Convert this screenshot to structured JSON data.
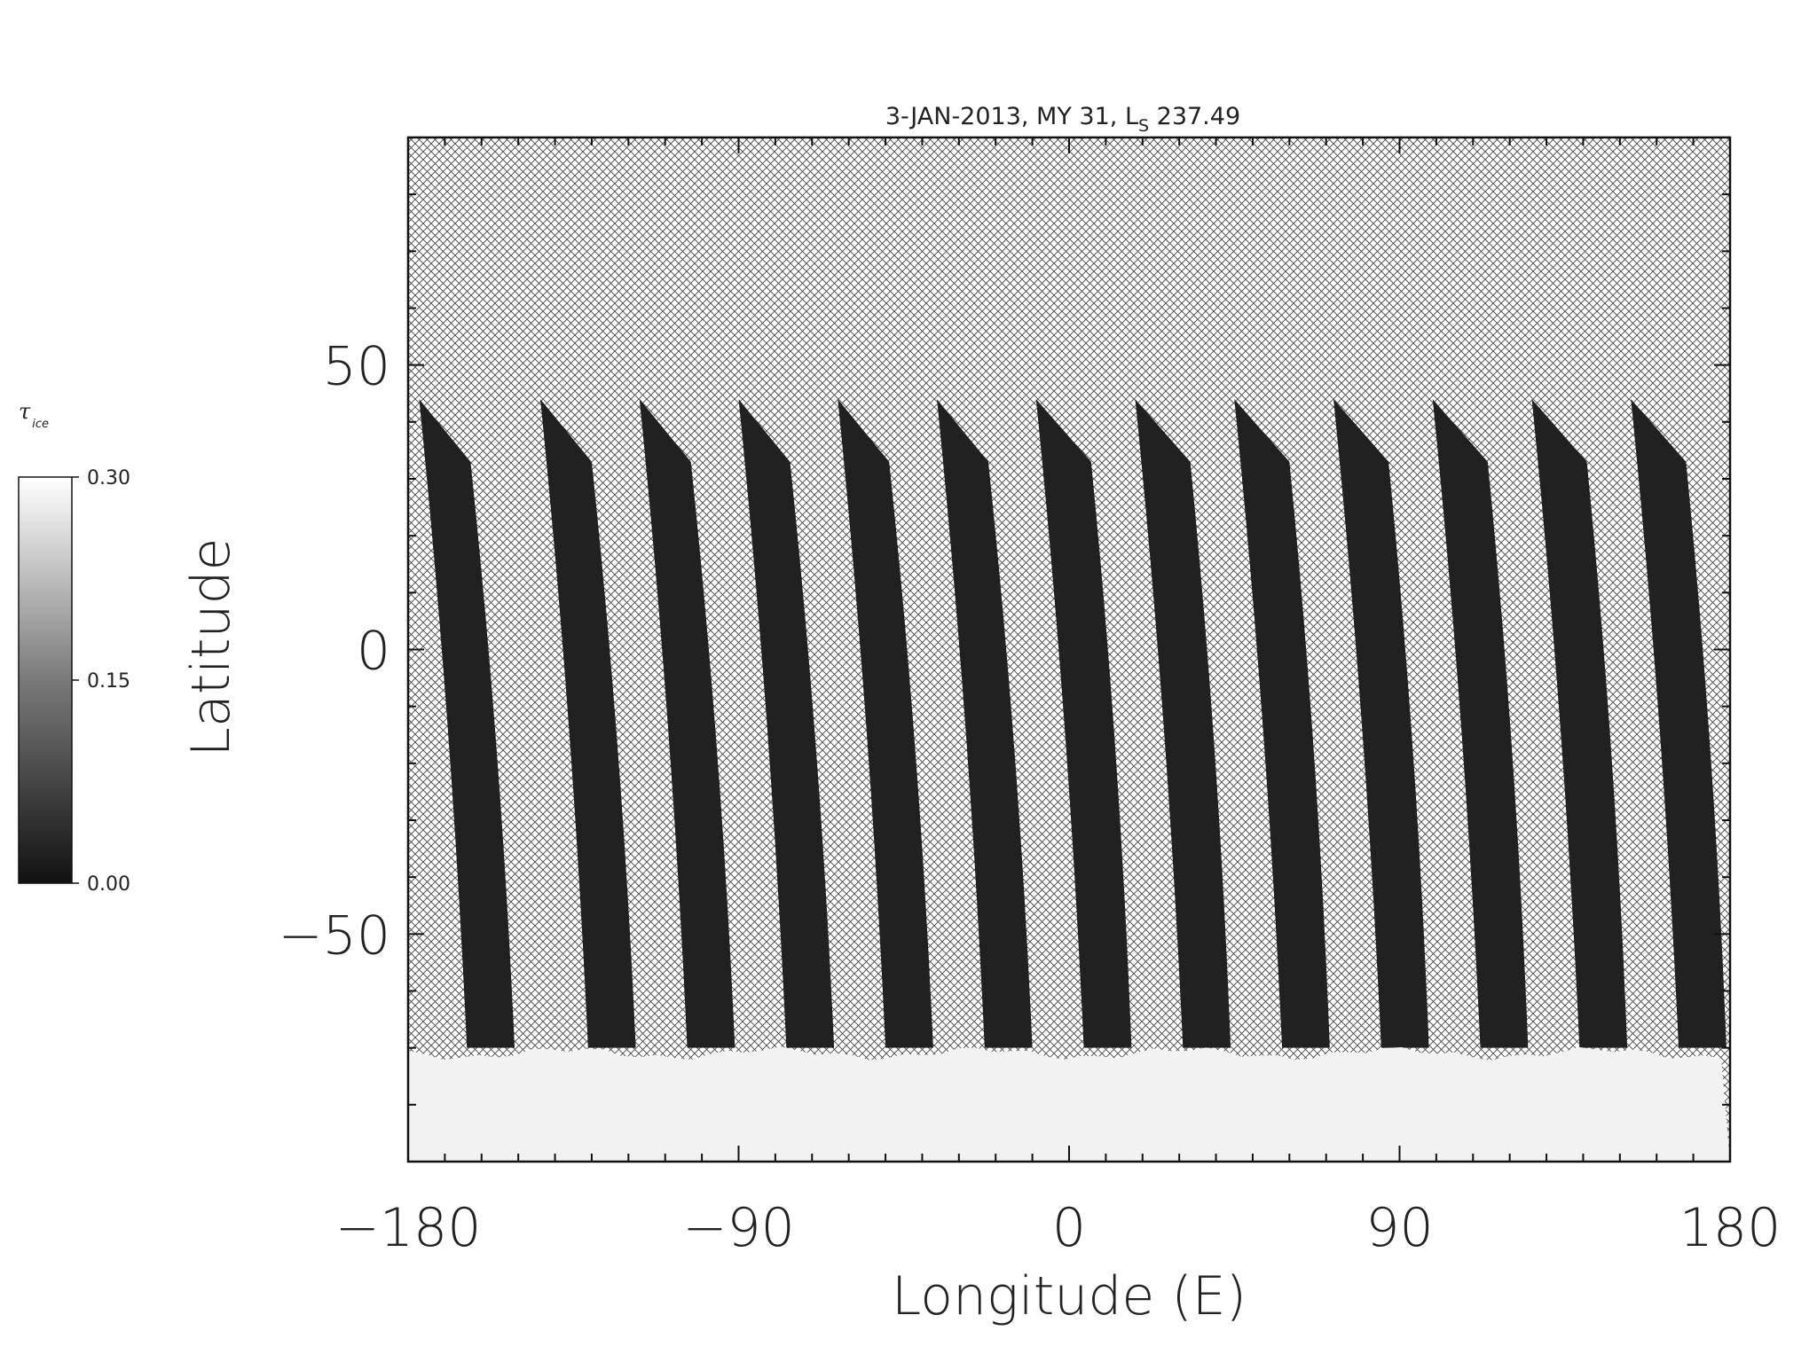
{
  "chart_data": {
    "type": "heatmap",
    "title": "3-JAN-2013, MY 31,  L",
    "title_subscript": "S",
    "title_suffix": " 237.49",
    "xlabel": "Longitude (E)",
    "ylabel": "Latitude",
    "xlim": [
      -180,
      180
    ],
    "ylim": [
      -90,
      90
    ],
    "xticks": [
      -180,
      -90,
      0,
      90,
      180
    ],
    "xtick_labels": [
      "−180",
      "−90",
      "0",
      "90",
      "180"
    ],
    "yticks": [
      50,
      0,
      -50
    ],
    "ytick_labels": [
      "50",
      "0",
      "−50"
    ],
    "missing_data_pattern": "crosshatch",
    "colorbar": {
      "symbol": "τ",
      "subscript": "ice",
      "min": 0.0,
      "max": 0.3,
      "ticks": [
        0.3,
        0.15,
        0.0
      ],
      "tick_labels": [
        "0.30",
        "0.15",
        "0.00"
      ],
      "colormap": "grayscale"
    },
    "swaths": [
      {
        "lon_top_left": -177,
        "lon_top_right": -163,
        "lon_bottom_left": -164,
        "lon_bottom_right": -151
      },
      {
        "lon_top_left": -144,
        "lon_top_right": -130,
        "lon_bottom_left": -131,
        "lon_bottom_right": -118
      },
      {
        "lon_top_left": -117,
        "lon_top_right": -103,
        "lon_bottom_left": -104,
        "lon_bottom_right": -91
      },
      {
        "lon_top_left": -90,
        "lon_top_right": -76,
        "lon_bottom_left": -77,
        "lon_bottom_right": -64
      },
      {
        "lon_top_left": -63,
        "lon_top_right": -49,
        "lon_bottom_left": -50,
        "lon_bottom_right": -37
      },
      {
        "lon_top_left": -36,
        "lon_top_right": -22,
        "lon_bottom_left": -23,
        "lon_bottom_right": -10
      },
      {
        "lon_top_left": -9,
        "lon_top_right": 6,
        "lon_bottom_left": 4,
        "lon_bottom_right": 17
      },
      {
        "lon_top_left": 18,
        "lon_top_right": 33,
        "lon_bottom_left": 31,
        "lon_bottom_right": 44
      },
      {
        "lon_top_left": 45,
        "lon_top_right": 60,
        "lon_bottom_left": 58,
        "lon_bottom_right": 71
      },
      {
        "lon_top_left": 72,
        "lon_top_right": 87,
        "lon_bottom_left": 85,
        "lon_bottom_right": 98
      },
      {
        "lon_top_left": 99,
        "lon_top_right": 114,
        "lon_bottom_left": 112,
        "lon_bottom_right": 125
      },
      {
        "lon_top_left": 126,
        "lon_top_right": 141,
        "lon_bottom_left": 139,
        "lon_bottom_right": 152
      },
      {
        "lon_top_left": 153,
        "lon_top_right": 168,
        "lon_bottom_left": 166,
        "lon_bottom_right": 179
      }
    ],
    "swath_lat_top_left": 44,
    "swath_lat_top_right": 33,
    "swath_lat_bottom": -70,
    "swath_value": 0.02,
    "south_polar_cap": {
      "lat_edge": -71,
      "value": 0.29
    }
  }
}
